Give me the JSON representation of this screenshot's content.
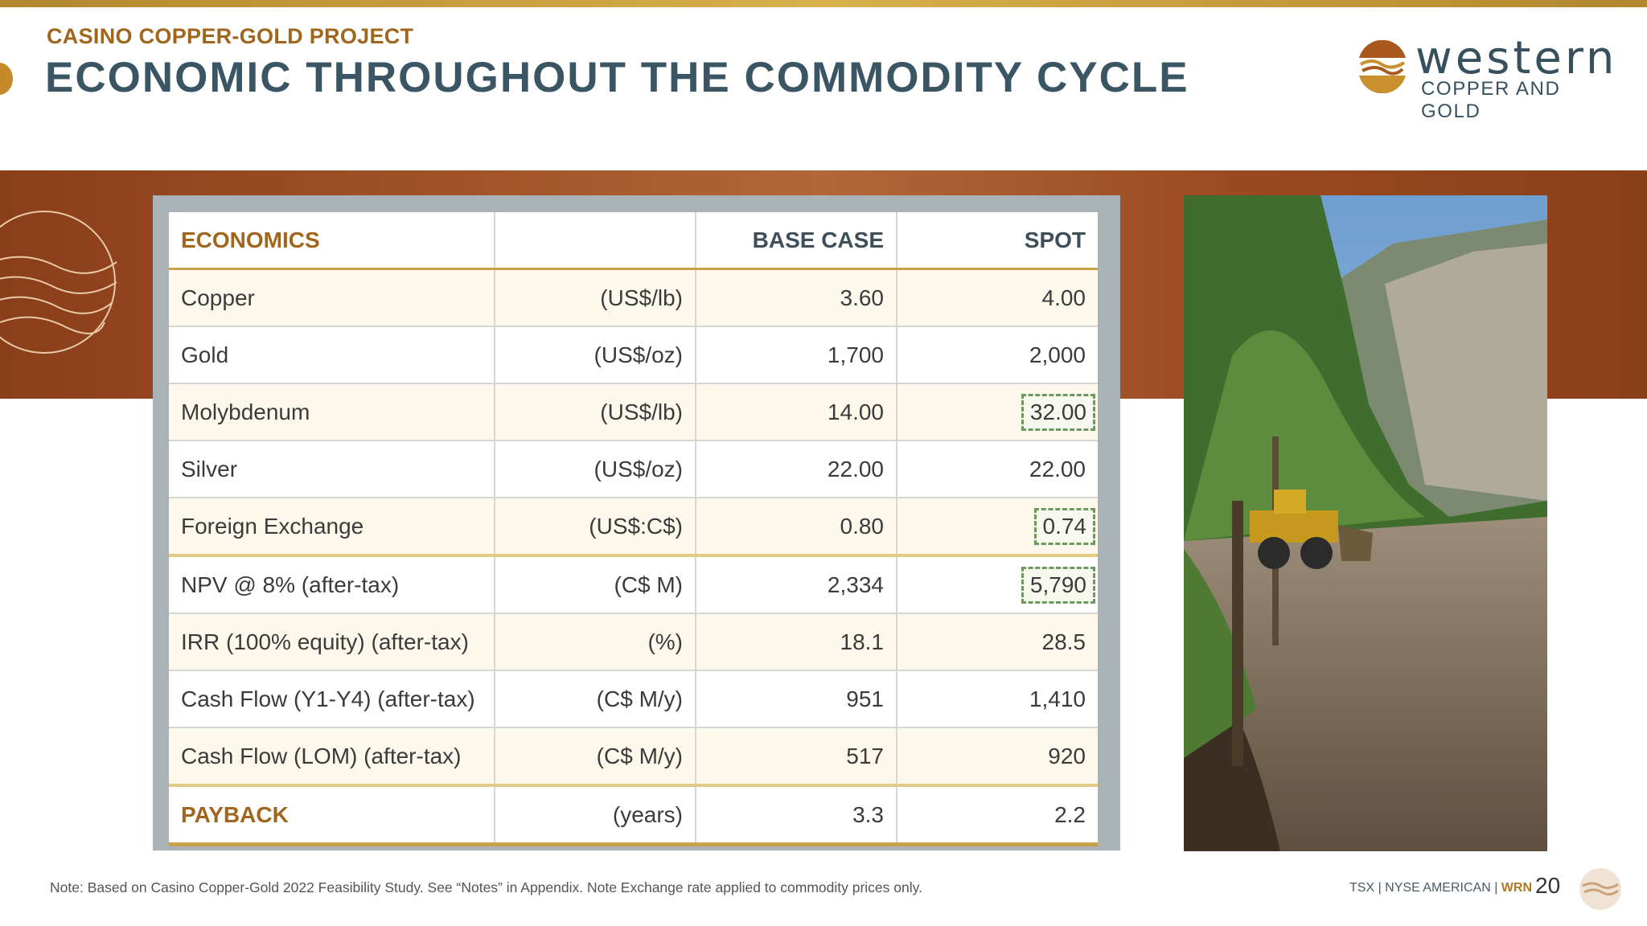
{
  "header": {
    "eyebrow": "CASINO COPPER-GOLD PROJECT",
    "title": "ECONOMIC THROUGHOUT THE COMMODITY CYCLE"
  },
  "logo": {
    "word": "western",
    "sub": "COPPER AND GOLD",
    "icon": "mountain-swirl-logo-icon"
  },
  "table": {
    "headers": [
      "ECONOMICS",
      "",
      "BASE CASE",
      "SPOT"
    ],
    "rows": [
      {
        "label": "Copper",
        "unit": "(US$/lb)",
        "base": "3.60",
        "spot": "4.00"
      },
      {
        "label": "Gold",
        "unit": "(US$/oz)",
        "base": "1,700",
        "spot": "2,000"
      },
      {
        "label": "Molybdenum",
        "unit": "(US$/lb)",
        "base": "14.00",
        "spot": "32.00"
      },
      {
        "label": "Silver",
        "unit": "(US$/oz)",
        "base": "22.00",
        "spot": "22.00"
      },
      {
        "label": "Foreign Exchange",
        "unit": "(US$:C$)",
        "base": "0.80",
        "spot": "0.74"
      },
      {
        "label": "NPV @ 8% (after-tax)",
        "unit": "(C$ M)",
        "base": "2,334",
        "spot": "5,790"
      },
      {
        "label": "IRR (100% equity) (after-tax)",
        "unit": "(%)",
        "base": "18.1",
        "spot": "28.5"
      },
      {
        "label": "Cash Flow (Y1-Y4) (after-tax)",
        "unit": "(C$ M/y)",
        "base": "951",
        "spot": "1,410"
      },
      {
        "label": "Cash Flow (LOM) (after-tax)",
        "unit": "(C$ M/y)",
        "base": "517",
        "spot": "920"
      },
      {
        "label": "PAYBACK",
        "unit": "(years)",
        "base": "3.3",
        "spot": "2.2"
      }
    ]
  },
  "footer": {
    "note": "Note: Based on Casino Copper-Gold 2022 Feasibility Study.  See “Notes” in Appendix.  Note Exchange rate applied to commodity prices only.",
    "ticker_prefix": "TSX | NYSE AMERICAN | ",
    "ticker_symbol": "WRN",
    "page": "20"
  },
  "colors": {
    "gold_accent": "#a0661d",
    "title_slate": "#3a5563",
    "band_copper": "#a3542a",
    "highlight_dash": "#6d9960"
  }
}
